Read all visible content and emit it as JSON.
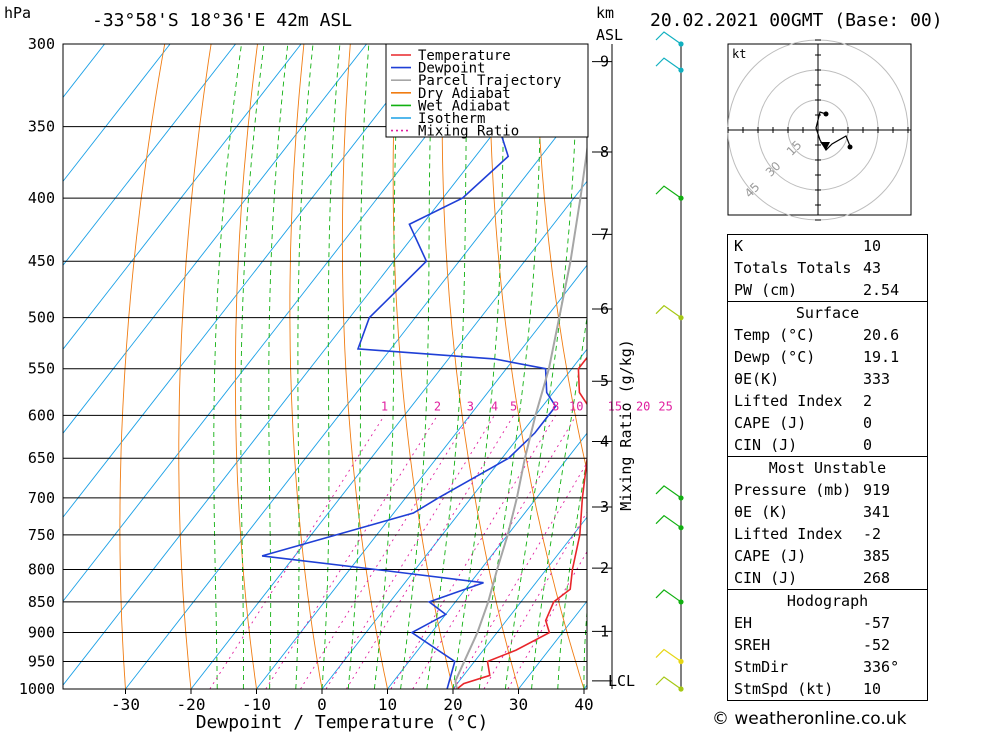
{
  "header": {
    "hpa_unit": "hPa",
    "location": "-33°58'S  18°36'E  42m  ASL",
    "km_unit": "km",
    "km_asl": "ASL",
    "datetime": "20.02.2021  00GMT  (Base: 00)"
  },
  "chart_data": {
    "type": "line",
    "subtype": "skew-T log-P diagram",
    "xlabel": "Dewpoint / Temperature (°C)",
    "ylabel_right": "Mixing Ratio (g/kg)",
    "x_ticks": [
      -30,
      -20,
      -10,
      0,
      10,
      20,
      30,
      40
    ],
    "x_range": [
      -40,
      40
    ],
    "p_ticks": [
      300,
      350,
      400,
      450,
      500,
      550,
      600,
      650,
      700,
      750,
      800,
      850,
      900,
      950,
      1000
    ],
    "p_range": [
      300,
      1000
    ],
    "km_ticks": [
      {
        "label": "9",
        "p": 310
      },
      {
        "label": "8",
        "p": 367
      },
      {
        "label": "7",
        "p": 428
      },
      {
        "label": "6",
        "p": 492
      },
      {
        "label": "5",
        "p": 563
      },
      {
        "label": "4",
        "p": 630
      },
      {
        "label": "3",
        "p": 712
      },
      {
        "label": "2",
        "p": 798
      },
      {
        "label": "1",
        "p": 898
      },
      {
        "label": "LCL",
        "p": 985
      }
    ],
    "mixing_ratio_labels": [
      "1",
      "2",
      "3",
      "4",
      "5",
      "8",
      "10",
      "15",
      "20",
      "25"
    ],
    "legend": [
      {
        "name": "Temperature",
        "color": "#e8262a"
      },
      {
        "name": "Dewpoint",
        "color": "#1f3fd6"
      },
      {
        "name": "Parcel Trajectory",
        "color": "#a6a6a6"
      },
      {
        "name": "Dry Adiabat",
        "color": "#f07c12"
      },
      {
        "name": "Wet Adiabat",
        "color": "#11b011"
      },
      {
        "name": "Isotherm",
        "color": "#1aa0e6"
      },
      {
        "name": "Mixing Ratio",
        "color": "#e01fa0"
      }
    ],
    "series": [
      {
        "name": "Temperature",
        "points": [
          [
            1000,
            20.6
          ],
          [
            990,
            21
          ],
          [
            975,
            24
          ],
          [
            950,
            22
          ],
          [
            930,
            25
          ],
          [
            900,
            28
          ],
          [
            880,
            26
          ],
          [
            850,
            25
          ],
          [
            830,
            26
          ],
          [
            800,
            24
          ],
          [
            750,
            21
          ],
          [
            700,
            17
          ],
          [
            650,
            13
          ],
          [
            600,
            9
          ],
          [
            575,
            4
          ],
          [
            550,
            1
          ],
          [
            530,
            1
          ],
          [
            500,
            -3
          ],
          [
            450,
            -9
          ],
          [
            430,
            -11
          ],
          [
            400,
            -13
          ],
          [
            350,
            -23
          ],
          [
            300,
            -36
          ]
        ]
      },
      {
        "name": "Dewpoint",
        "points": [
          [
            1000,
            19.1
          ],
          [
            950,
            17
          ],
          [
            900,
            7
          ],
          [
            870,
            10
          ],
          [
            850,
            6
          ],
          [
            820,
            12
          ],
          [
            800,
            -6
          ],
          [
            780,
            -25
          ],
          [
            720,
            -7
          ],
          [
            700,
            -5
          ],
          [
            650,
            1
          ],
          [
            620,
            2
          ],
          [
            590,
            2
          ],
          [
            575,
            -1
          ],
          [
            550,
            -4
          ],
          [
            540,
            -13
          ],
          [
            530,
            -35
          ],
          [
            500,
            -37
          ],
          [
            450,
            -35
          ],
          [
            420,
            -42
          ],
          [
            400,
            -37
          ],
          [
            370,
            -35
          ],
          [
            350,
            -40
          ],
          [
            330,
            -40
          ],
          [
            300,
            -53
          ]
        ]
      },
      {
        "name": "Parcel Trajectory",
        "points": [
          [
            1000,
            20.6
          ],
          [
            985,
            19.4
          ],
          [
            900,
            17
          ],
          [
            850,
            15
          ],
          [
            800,
            12.5
          ],
          [
            750,
            10
          ],
          [
            700,
            7
          ],
          [
            650,
            3.5
          ],
          [
            600,
            0
          ],
          [
            550,
            -3.5
          ],
          [
            500,
            -8
          ],
          [
            450,
            -13
          ],
          [
            400,
            -19
          ],
          [
            350,
            -26
          ],
          [
            300,
            -35
          ]
        ]
      }
    ],
    "wind_barbs": [
      {
        "p": 300,
        "color": "#11b0c0"
      },
      {
        "p": 315,
        "color": "#11b0c0"
      },
      {
        "p": 400,
        "color": "#11b011"
      },
      {
        "p": 500,
        "color": "#a6c814"
      },
      {
        "p": 700,
        "color": "#11b011"
      },
      {
        "p": 740,
        "color": "#11b011"
      },
      {
        "p": 850,
        "color": "#11b011"
      },
      {
        "p": 950,
        "color": "#e6d614"
      },
      {
        "p": 1000,
        "color": "#a6c814"
      }
    ]
  },
  "hodograph": {
    "unit_label": "kt",
    "ring_labels": [
      "15",
      "30",
      "45"
    ]
  },
  "indices": {
    "top": [
      {
        "label": "K",
        "value": "10"
      },
      {
        "label": "Totals Totals",
        "value": "43"
      },
      {
        "label": "PW (cm)",
        "value": "2.54"
      }
    ],
    "surface_title": "Surface",
    "surface": [
      {
        "label": "Temp (°C)",
        "value": "20.6"
      },
      {
        "label": "Dewp (°C)",
        "value": "19.1"
      },
      {
        "label": "θE(K)",
        "value": "333"
      },
      {
        "label": "Lifted Index",
        "value": "2"
      },
      {
        "label": "CAPE (J)",
        "value": "0"
      },
      {
        "label": "CIN (J)",
        "value": "0"
      }
    ],
    "mu_title": "Most Unstable",
    "mu": [
      {
        "label": "Pressure (mb)",
        "value": "919"
      },
      {
        "label": "θE (K)",
        "value": "341"
      },
      {
        "label": "Lifted Index",
        "value": "-2"
      },
      {
        "label": "CAPE (J)",
        "value": "385"
      },
      {
        "label": "CIN (J)",
        "value": "268"
      }
    ],
    "hodo_title": "Hodograph",
    "hodo": [
      {
        "label": "EH",
        "value": "-57"
      },
      {
        "label": "SREH",
        "value": "-52"
      },
      {
        "label": "StmDir",
        "value": "336°"
      },
      {
        "label": "StmSpd (kt)",
        "value": "10"
      }
    ]
  },
  "credit": "© weatheronline.co.uk"
}
